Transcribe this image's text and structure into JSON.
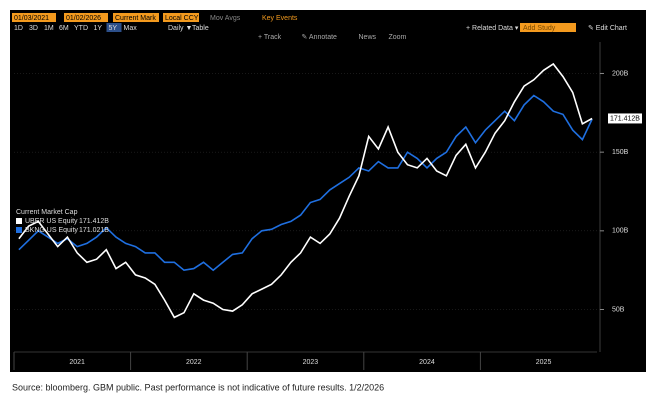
{
  "toolbar": {
    "start_date": "01/03/2021",
    "end_date": "01/02/2026",
    "field": "Current Mark",
    "currency": "Local CCY",
    "mov_avgs": "Mov Avgs",
    "key_events": "Key Events",
    "periods": [
      "1D",
      "3D",
      "1M",
      "6M",
      "YTD",
      "1Y",
      "5Y",
      "Max"
    ],
    "frequency": "Daily ▼",
    "table": "Table",
    "related": "+ Related Data ▾",
    "add_study": "Add Study",
    "edit_chart": "✎ Edit Chart",
    "tools": [
      "+ Track",
      "✎ Annotate",
      "News",
      "Zoom"
    ]
  },
  "chart_data": {
    "type": "line",
    "legend_title": "Current Market Cap",
    "categories": [
      null,
      null,
      null,
      null,
      null,
      null,
      "2021",
      null,
      null,
      null,
      null,
      null,
      null,
      null,
      null,
      null,
      null,
      null,
      "2022",
      null,
      null,
      null,
      null,
      null,
      null,
      null,
      null,
      null,
      null,
      null,
      "2023",
      null,
      null,
      null,
      null,
      null,
      null,
      null,
      null,
      null,
      null,
      null,
      "2024",
      null,
      null,
      null,
      null,
      null,
      null,
      null,
      null,
      null,
      null,
      null,
      "2025",
      null,
      null,
      null,
      null,
      null
    ],
    "series": [
      {
        "name": "UBER US Equity",
        "color": "#ffffff",
        "values": [
          95,
          103,
          106,
          98,
          90,
          96,
          86,
          80,
          82,
          88,
          76,
          80,
          72,
          70,
          66,
          56,
          45,
          48,
          60,
          56,
          54,
          50,
          49,
          53,
          60,
          63,
          66,
          72,
          80,
          86,
          96,
          92,
          98,
          108,
          122,
          135,
          160,
          152,
          166,
          150,
          142,
          140,
          146,
          138,
          135,
          148,
          155,
          140,
          150,
          162,
          170,
          182,
          192,
          196,
          202,
          206,
          198,
          188,
          168,
          171.412
        ],
        "value_labels": [
          null,
          null,
          null,
          null,
          null,
          null,
          null,
          null,
          null,
          null,
          null,
          null,
          null,
          null,
          null,
          null,
          null,
          null,
          null,
          null,
          null,
          null,
          null,
          null,
          null,
          null,
          null,
          null,
          null,
          null,
          null,
          null,
          null,
          null,
          null,
          null,
          null,
          null,
          null,
          null,
          null,
          null,
          null,
          null,
          null,
          null,
          null,
          null,
          null,
          null,
          null,
          null,
          null,
          null,
          null,
          null,
          null,
          null,
          null,
          "171.412B"
        ]
      },
      {
        "name": "BKNG US Equity",
        "color": "#1f6fe0",
        "values": [
          88,
          94,
          100,
          96,
          92,
          95,
          90,
          92,
          96,
          102,
          96,
          92,
          90,
          86,
          86,
          80,
          80,
          75,
          76,
          80,
          75,
          80,
          85,
          86,
          95,
          100,
          101,
          104,
          106,
          110,
          118,
          120,
          126,
          130,
          134,
          140,
          138,
          144,
          140,
          140,
          150,
          146,
          140,
          146,
          150,
          160,
          166,
          156,
          164,
          170,
          176,
          170,
          180,
          186,
          182,
          176,
          174,
          164,
          158,
          171.021
        ],
        "value_labels": [
          null,
          null,
          null,
          null,
          null,
          null,
          null,
          null,
          null,
          null,
          null,
          null,
          null,
          null,
          null,
          null,
          null,
          null,
          null,
          null,
          null,
          null,
          null,
          null,
          null,
          null,
          null,
          null,
          null,
          null,
          null,
          null,
          null,
          null,
          null,
          null,
          null,
          null,
          null,
          null,
          null,
          null,
          null,
          null,
          null,
          null,
          null,
          null,
          null,
          null,
          null,
          null,
          null,
          null,
          null,
          null,
          null,
          null,
          null,
          "171.021B"
        ]
      }
    ],
    "ylim": [
      23,
      220
    ],
    "yticks": [
      {
        "value": 50,
        "label": "50B"
      },
      {
        "value": 100,
        "label": "100B"
      },
      {
        "value": 150,
        "label": "150B"
      },
      {
        "value": 200,
        "label": "200B"
      }
    ],
    "grid": true
  },
  "footer": "Source: bloomberg. GBM public. Past performance is not indicative of future results. 1/2/2026"
}
